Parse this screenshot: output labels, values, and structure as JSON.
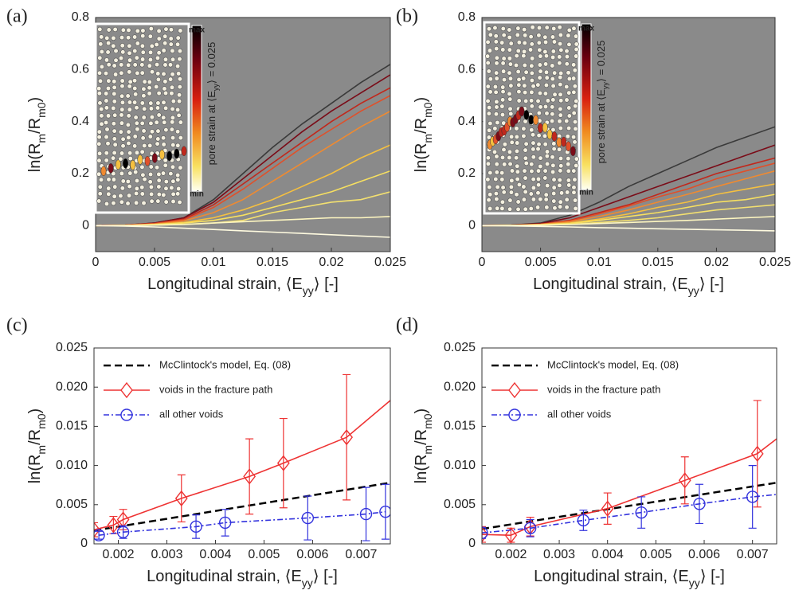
{
  "chart_data": [
    {
      "type": "line",
      "panel_label": "(a)",
      "background": "#8a8a8a",
      "xlabel": [
        "Longitudinal strain, ⟨E",
        "yy",
        "⟩ [-]"
      ],
      "ylabel": [
        "ln(R",
        "m",
        "/R",
        "m0",
        ")"
      ],
      "xlim": [
        0,
        0.025
      ],
      "ylim": [
        -0.1,
        0.8
      ],
      "xticks": [
        0,
        0.005,
        0.01,
        0.015,
        0.02,
        0.025
      ],
      "yticks": [
        0,
        0.2,
        0.4,
        0.6,
        0.8
      ],
      "inset": {
        "colorbar_max": "max",
        "colorbar_min": "min",
        "colorbar_label": [
          "pore strain at ⟨E",
          "yy",
          "⟩ = 0.025"
        ]
      },
      "x": [
        0,
        0.0025,
        0.005,
        0.0075,
        0.01,
        0.0125,
        0.015,
        0.0175,
        0.02,
        0.0225,
        0.025
      ],
      "series": [
        {
          "color": "#3a3a3a",
          "values": [
            0,
            0.002,
            0.01,
            0.03,
            0.1,
            0.2,
            0.3,
            0.39,
            0.47,
            0.55,
            0.62
          ]
        },
        {
          "color": "#7a0c18",
          "values": [
            0,
            0.002,
            0.01,
            0.03,
            0.09,
            0.18,
            0.27,
            0.36,
            0.44,
            0.51,
            0.58
          ]
        },
        {
          "color": "#c0281c",
          "values": [
            0,
            0.002,
            0.008,
            0.025,
            0.08,
            0.16,
            0.24,
            0.32,
            0.4,
            0.47,
            0.53
          ]
        },
        {
          "color": "#e0502a",
          "values": [
            0,
            0.002,
            0.008,
            0.022,
            0.07,
            0.14,
            0.22,
            0.3,
            0.37,
            0.44,
            0.5
          ]
        },
        {
          "color": "#f08a30",
          "values": [
            0,
            0.001,
            0.006,
            0.018,
            0.05,
            0.1,
            0.17,
            0.24,
            0.31,
            0.38,
            0.44
          ]
        },
        {
          "color": "#f5c040",
          "values": [
            0,
            0.001,
            0.005,
            0.012,
            0.03,
            0.06,
            0.1,
            0.15,
            0.2,
            0.26,
            0.31
          ]
        },
        {
          "color": "#f7e060",
          "values": [
            0,
            0.001,
            0.004,
            0.01,
            0.02,
            0.04,
            0.07,
            0.1,
            0.13,
            0.17,
            0.21
          ]
        },
        {
          "color": "#f3e070",
          "values": [
            0,
            0,
            0.002,
            0.005,
            0.01,
            0.02,
            0.05,
            0.07,
            0.09,
            0.1,
            0.13
          ]
        },
        {
          "color": "#fdf6c0",
          "values": [
            0,
            0,
            0.002,
            0.004,
            0.01,
            0.015,
            0.02,
            0.025,
            0.03,
            0.03,
            0.035
          ]
        },
        {
          "color": "#fffbe0",
          "values": [
            0,
            -0.002,
            -0.005,
            -0.01,
            -0.015,
            -0.02,
            -0.025,
            -0.03,
            -0.035,
            -0.04,
            -0.045
          ]
        }
      ]
    },
    {
      "type": "line",
      "panel_label": "(b)",
      "background": "#8a8a8a",
      "xlabel": [
        "Longitudinal strain, ⟨E",
        "yy",
        "⟩ [-]"
      ],
      "ylabel": [
        "ln(R",
        "m",
        "/R",
        "m0",
        ")"
      ],
      "xlim": [
        0,
        0.025
      ],
      "ylim": [
        -0.1,
        0.8
      ],
      "xticks": [
        0,
        0.005,
        0.01,
        0.015,
        0.02,
        0.025
      ],
      "yticks": [
        0,
        0.2,
        0.4,
        0.6,
        0.8
      ],
      "inset": {
        "colorbar_max": "max",
        "colorbar_min": "min",
        "colorbar_label": [
          "pore strain at ⟨E",
          "yy",
          "⟩ = 0.025"
        ]
      },
      "x": [
        0,
        0.0025,
        0.005,
        0.0075,
        0.01,
        0.0125,
        0.015,
        0.0175,
        0.02,
        0.0225,
        0.025
      ],
      "series": [
        {
          "color": "#3a3a3a",
          "values": [
            0,
            0.002,
            0.01,
            0.04,
            0.09,
            0.15,
            0.2,
            0.25,
            0.3,
            0.34,
            0.38
          ]
        },
        {
          "color": "#7a0c18",
          "values": [
            0,
            0.002,
            0.008,
            0.03,
            0.07,
            0.11,
            0.15,
            0.19,
            0.23,
            0.27,
            0.31
          ]
        },
        {
          "color": "#c0281c",
          "values": [
            0,
            0.001,
            0.006,
            0.02,
            0.05,
            0.08,
            0.12,
            0.16,
            0.2,
            0.23,
            0.26
          ]
        },
        {
          "color": "#e0502a",
          "values": [
            0,
            0.001,
            0.005,
            0.018,
            0.045,
            0.075,
            0.11,
            0.14,
            0.18,
            0.21,
            0.24
          ]
        },
        {
          "color": "#f08a30",
          "values": [
            0,
            0.001,
            0.005,
            0.015,
            0.035,
            0.06,
            0.09,
            0.12,
            0.15,
            0.18,
            0.21
          ]
        },
        {
          "color": "#f5c040",
          "values": [
            0,
            0.001,
            0.004,
            0.01,
            0.025,
            0.045,
            0.07,
            0.09,
            0.12,
            0.14,
            0.16
          ]
        },
        {
          "color": "#f7e060",
          "values": [
            0,
            0.001,
            0.003,
            0.008,
            0.02,
            0.035,
            0.05,
            0.07,
            0.09,
            0.1,
            0.12
          ]
        },
        {
          "color": "#f3e070",
          "values": [
            0,
            0,
            0.002,
            0.005,
            0.012,
            0.02,
            0.03,
            0.045,
            0.06,
            0.07,
            0.08
          ]
        },
        {
          "color": "#fdf6c0",
          "values": [
            0,
            0,
            0.002,
            0.004,
            0.008,
            0.012,
            0.016,
            0.02,
            0.025,
            0.03,
            0.035
          ]
        },
        {
          "color": "#fffbe0",
          "values": [
            0,
            -0.001,
            -0.003,
            -0.005,
            -0.008,
            -0.01,
            -0.012,
            -0.014,
            -0.016,
            -0.018,
            -0.02
          ]
        }
      ]
    },
    {
      "type": "errorline",
      "panel_label": "(c)",
      "background": "#ffffff",
      "legend": "upper left",
      "xlabel": [
        "Longitudinal strain, ⟨E",
        "yy",
        "⟩ [-]"
      ],
      "ylabel": [
        "ln(R",
        "m",
        "/R",
        "m0",
        ")"
      ],
      "xlim": [
        0.0015,
        0.0076
      ],
      "ylim": [
        0,
        0.025
      ],
      "xticks": [
        0.002,
        0.003,
        0.004,
        0.005,
        0.006,
        0.007
      ],
      "yticks": [
        0,
        0.005,
        {
          "value": 0.01,
          "label": "0.010"
        },
        0.015,
        {
          "value": 0.02,
          "label": "0.020"
        },
        0.025
      ],
      "series": [
        {
          "name": "McClintock's model, Eq. (08)",
          "color": "#000000",
          "dash": "dashed",
          "x": [
            0.0015,
            0.0076
          ],
          "values": [
            0.0017,
            0.0078
          ]
        },
        {
          "name": "voids in the fracture path",
          "color": "#ee3333",
          "dash": "solid",
          "marker": "diamond",
          "x": [
            0.0015,
            0.0019,
            0.0021,
            0.0033,
            0.0047,
            0.0054,
            0.0067,
            0.0076
          ],
          "values": [
            0.0018,
            0.0024,
            0.0031,
            0.0058,
            0.0086,
            0.0103,
            0.0136,
            0.0183
          ],
          "errors": [
            0.0009,
            0.0011,
            0.0013,
            0.003,
            0.0048,
            0.0057,
            0.008,
            null
          ]
        },
        {
          "name": "all other voids",
          "color": "#3333dd",
          "dash": "dashdot",
          "marker": "circle",
          "x": [
            0.0016,
            0.0021,
            0.0036,
            0.0042,
            0.0059,
            0.0071,
            0.0075
          ],
          "values": [
            0.0011,
            0.0015,
            0.0022,
            0.0027,
            0.0033,
            0.0038,
            0.0041
          ],
          "errors": [
            0.0005,
            0.0008,
            0.0015,
            0.0017,
            0.0028,
            0.0034,
            0.0035
          ]
        }
      ]
    },
    {
      "type": "errorline",
      "panel_label": "(d)",
      "background": "#ffffff",
      "legend": "upper left",
      "xlabel": [
        "Longitudinal strain, ⟨E",
        "yy",
        "⟩ [-]"
      ],
      "ylabel": [
        "ln(R",
        "m",
        "/R",
        "m0",
        ")"
      ],
      "xlim": [
        0.0014,
        0.0075
      ],
      "ylim": [
        0,
        0.025
      ],
      "xticks": [
        0.002,
        0.003,
        0.004,
        0.005,
        0.006,
        0.007
      ],
      "yticks": [
        0,
        0.005,
        {
          "value": 0.01,
          "label": "0.010"
        },
        0.015,
        {
          "value": 0.02,
          "label": "0.020"
        },
        0.025
      ],
      "series": [
        {
          "name": "McClintock's model, Eq. (08)",
          "color": "#000000",
          "dash": "dashed",
          "x": [
            0.0014,
            0.0075
          ],
          "values": [
            0.0019,
            0.0078
          ]
        },
        {
          "name": "voids in the fracture path",
          "color": "#ee3333",
          "dash": "solid",
          "marker": "diamond",
          "x": [
            0.0014,
            0.002,
            0.0024,
            0.004,
            0.0056,
            0.0071,
            0.0075
          ],
          "values": [
            0.0012,
            0.0011,
            0.0022,
            0.0045,
            0.0081,
            0.0115,
            0.0134
          ],
          "errors": [
            0.001,
            0.0009,
            0.0012,
            0.002,
            0.003,
            0.0068,
            null
          ]
        },
        {
          "name": "all other voids",
          "color": "#3333dd",
          "dash": "dashdot",
          "marker": "circle",
          "x": [
            0.0014,
            0.0024,
            0.0035,
            0.0047,
            0.0059,
            0.007,
            0.0075
          ],
          "values": [
            0.0014,
            0.002,
            0.003,
            0.004,
            0.0051,
            0.006,
            0.0063
          ],
          "errors": [
            0.0007,
            0.0011,
            0.0013,
            0.002,
            0.0025,
            0.004,
            null
          ]
        }
      ]
    }
  ]
}
